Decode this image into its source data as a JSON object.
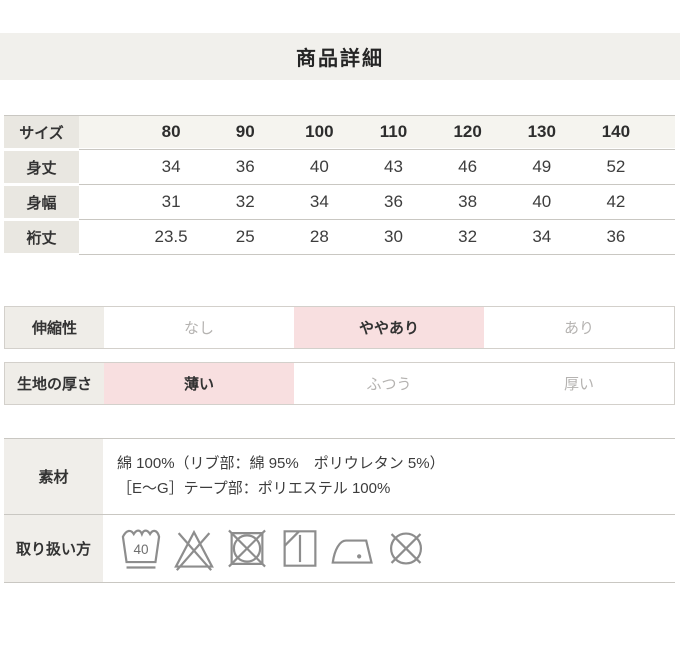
{
  "page": {
    "title": "商品詳細"
  },
  "size_table": {
    "label_header": "サイズ",
    "sizes": [
      "80",
      "90",
      "100",
      "110",
      "120",
      "130",
      "140"
    ],
    "rows": [
      {
        "label": "身丈",
        "values": [
          "34",
          "36",
          "40",
          "43",
          "46",
          "49",
          "52"
        ]
      },
      {
        "label": "身幅",
        "values": [
          "31",
          "32",
          "34",
          "36",
          "38",
          "40",
          "42"
        ]
      },
      {
        "label": "裄丈",
        "values": [
          "23.5",
          "25",
          "28",
          "30",
          "32",
          "34",
          "36"
        ]
      }
    ]
  },
  "attributes": [
    {
      "label": "伸縮性",
      "options": [
        "なし",
        "ややあり",
        "あり"
      ],
      "selected_index": 1
    },
    {
      "label": "生地の厚さ",
      "options": [
        "薄い",
        "ふつう",
        "厚い"
      ],
      "selected_index": 0
    }
  ],
  "details": {
    "material_label": "素材",
    "material_lines": [
      "綿 100%（リブ部：綿 95%　ポリウレタン 5%）",
      "［E～G］テープ部：ポリエステル 100%"
    ],
    "care_label": "取り扱い方",
    "care_icons": [
      {
        "name": "wash-40-gentle-icon",
        "label": "40"
      },
      {
        "name": "do-not-bleach-icon"
      },
      {
        "name": "do-not-tumble-dry-icon"
      },
      {
        "name": "line-dry-in-shade-icon"
      },
      {
        "name": "iron-low-icon"
      },
      {
        "name": "do-not-dry-clean-icon"
      }
    ]
  },
  "colors": {
    "highlight_pink": "#f8dfe0",
    "title_band": "#f1f0ec",
    "label_cell": "#e9e7e1",
    "header_band": "#f5f4ef",
    "border": "#c9c7c2",
    "muted_option_text": "#b5b3b1",
    "care_icon_stroke": "#8d8d8d"
  }
}
